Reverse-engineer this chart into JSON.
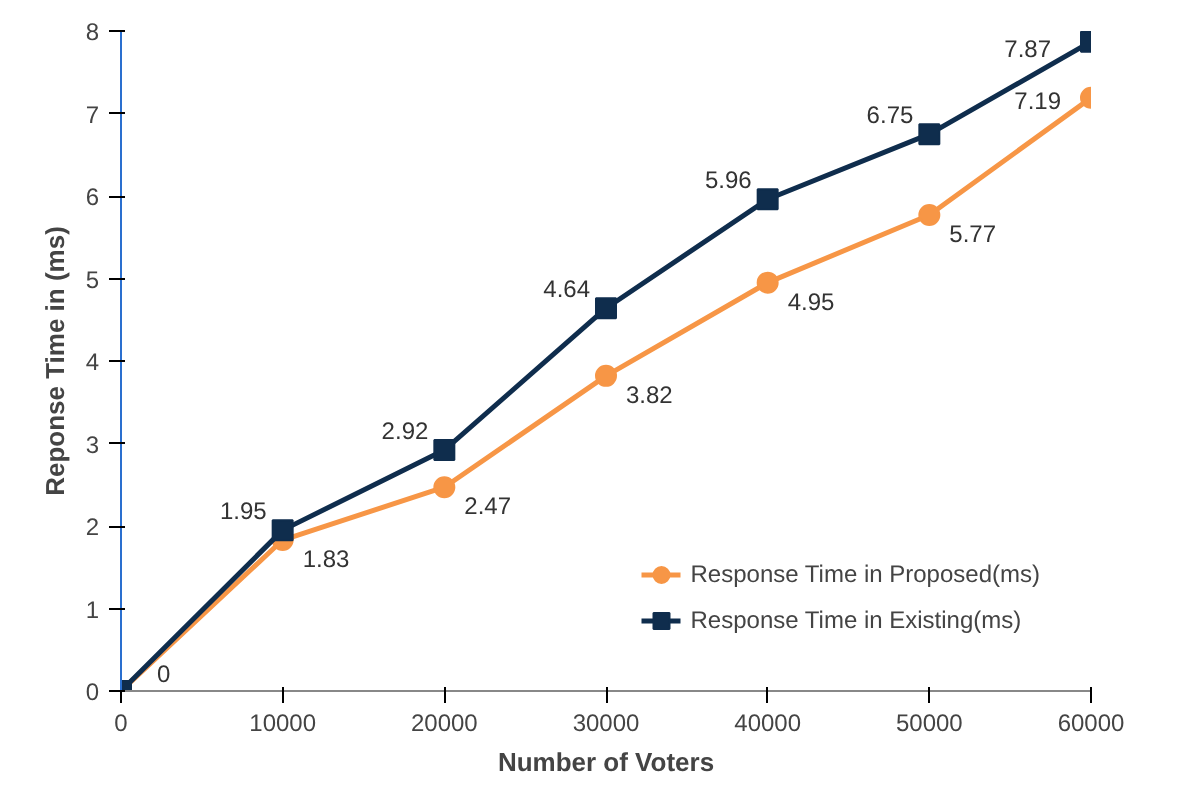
{
  "chart_data": {
    "type": "line",
    "xlabel": "Number of Voters",
    "ylabel": "Reponse Time in (ms)",
    "x": [
      0,
      10000,
      20000,
      30000,
      40000,
      50000,
      60000
    ],
    "series": [
      {
        "name": "Response Time in Proposed(ms)",
        "color": "#f79646",
        "marker": "circle",
        "values": [
          0,
          1.83,
          2.47,
          3.82,
          4.95,
          5.77,
          7.19
        ],
        "value_labels": [
          "0",
          "1.83",
          "2.47",
          "3.82",
          "4.95",
          "5.77",
          "7.19"
        ]
      },
      {
        "name": "Response Time in Existing(ms)",
        "color": "#0f2d4d",
        "marker": "square",
        "values": [
          0,
          1.95,
          2.92,
          4.64,
          5.96,
          6.75,
          7.87
        ],
        "value_labels": [
          null,
          "1.95",
          "2.92",
          "4.64",
          "5.96",
          "6.75",
          "7.87"
        ]
      }
    ],
    "xlim": [
      0,
      60000
    ],
    "xticks": [
      0,
      10000,
      20000,
      30000,
      40000,
      50000,
      60000
    ],
    "ylim": [
      0,
      8
    ],
    "yticks": [
      0,
      1,
      2,
      3,
      4,
      5,
      6,
      7,
      8
    ],
    "grid": false,
    "legend": "bottom right",
    "line_style": "solid"
  }
}
